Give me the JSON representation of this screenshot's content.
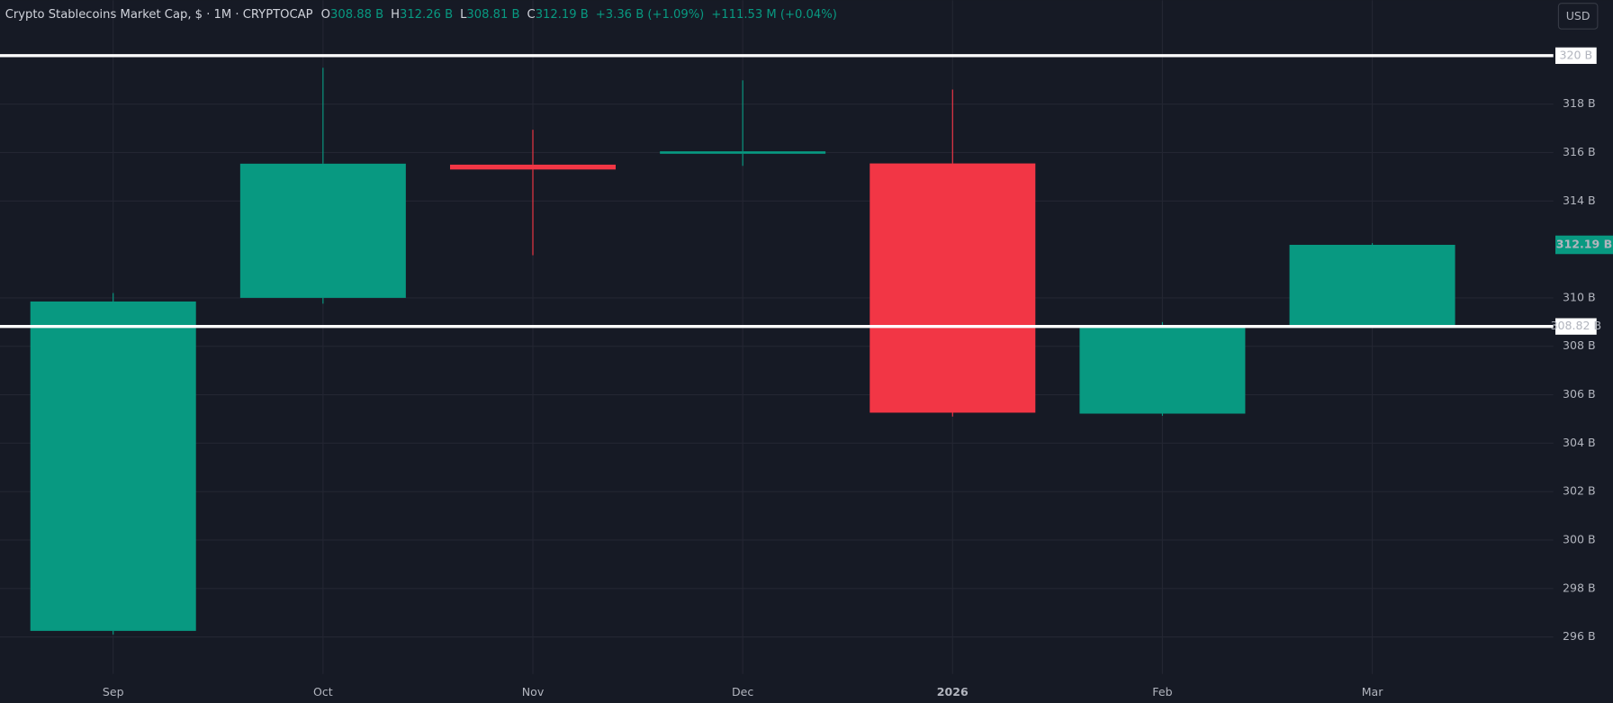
{
  "header": {
    "symbol": "Crypto Stablecoins Market Cap, $ · 1M · CRYPTOCAP",
    "o_label": "O",
    "o_value": "308.88 B",
    "h_label": "H",
    "h_value": "312.26 B",
    "l_label": "L",
    "l_value": "308.81 B",
    "c_label": "C",
    "c_value": "312.19 B",
    "change": "+3.36 B (+1.09%)",
    "volume": "+111.53 M (+0.04%)",
    "currency": "USD"
  },
  "chart_data": {
    "type": "candlestick",
    "categories": [
      "Sep",
      "Oct",
      "Nov",
      "Dec",
      "2026",
      "Feb",
      "Mar"
    ],
    "open": [
      296.25,
      310.0,
      315.5,
      315.95,
      315.55,
      305.22,
      308.88
    ],
    "high": [
      310.2,
      319.5,
      316.94,
      318.98,
      318.6,
      309.0,
      312.26
    ],
    "low": [
      296.1,
      309.76,
      311.76,
      315.45,
      305.1,
      305.13,
      308.81
    ],
    "close": [
      309.85,
      315.54,
      315.3,
      316.05,
      305.26,
      308.83,
      312.19
    ],
    "up_color": "#089981",
    "down_color": "#f23645",
    "ylim": [
      294.47,
      322.29
    ],
    "yticks": [
      {
        "value": 296,
        "label": "296 B"
      },
      {
        "value": 298,
        "label": "298 B"
      },
      {
        "value": 300,
        "label": "300 B"
      },
      {
        "value": 302,
        "label": "302 B"
      },
      {
        "value": 304,
        "label": "304 B"
      },
      {
        "value": 306,
        "label": "306 B"
      },
      {
        "value": 308,
        "label": "308 B"
      },
      {
        "value": 310,
        "label": "310 B"
      },
      {
        "value": 314,
        "label": "314 B"
      },
      {
        "value": 316,
        "label": "316 B"
      },
      {
        "value": 318,
        "label": "318 B"
      }
    ],
    "hlines": [
      {
        "value": 320,
        "label": "320 B"
      },
      {
        "value": 308.82,
        "label": "308.82 B"
      }
    ],
    "last_price": {
      "value": 312.19,
      "label": "312.19 B"
    },
    "grid": true
  }
}
